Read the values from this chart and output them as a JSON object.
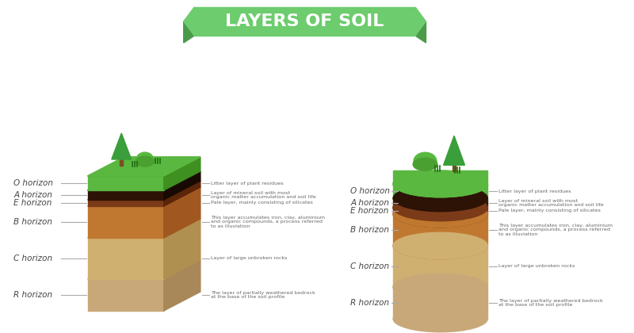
{
  "title": "LAYERS OF SOIL",
  "title_color": "#ffffff",
  "title_bg_color": "#6dcc6d",
  "title_shadow_color": "#4a9a4a",
  "bg_color": "#ffffff",
  "horizons_left": [
    "O horizon",
    "A horizon",
    "E horizon",
    "B horizon",
    "C horizon",
    "R horizon"
  ],
  "horizons_right": [
    "O horizon",
    "A horizon",
    "E horizon",
    "B horizon",
    "C horizon",
    "R horizon"
  ],
  "descriptions_right": [
    "Litter layer of plant residues",
    "Layer of mineral soil with most\norganic matter accumulation and soil life",
    "Pale layer, mainly consisting of silicates",
    "This layer accumulates iron, clay, aluminium\nand organic compounds, a process referred\nto as illuviation",
    "Layer of large unbroken rocks",
    "The layer of partially weathered bedrock\nat the base of the soil profile"
  ],
  "descriptions_left": [
    "Litter layer of plant residues",
    "Layer of mineral soil with most\norganic matter accumulation and soil life",
    "Pale layer, mainly consisting of silicates",
    "This layer accumulates iron, clay, aluminium\nand organic compounds, a process referred\nto as illuviation",
    "Layer of large unbroken rocks",
    "The layer of partially weathered bedrock\nat the base of the soil profile"
  ],
  "layer_heights": [
    18,
    12,
    8,
    40,
    52,
    40
  ],
  "layer_colors_front": [
    "#5ab840",
    "#2d1206",
    "#7b3b18",
    "#c07830",
    "#d0b070",
    "#c8a878"
  ],
  "layer_colors_top": [
    "#4ea030",
    "#220e04",
    "#6b2f10",
    "#b06828",
    "#c0a060",
    "#b89868"
  ],
  "layer_colors_side": [
    "#3e9020",
    "#180a02",
    "#5b2508",
    "#a05820",
    "#b09050",
    "#a88858"
  ],
  "cyl_layer_colors": [
    "#5ab840",
    "#2d1206",
    "#7b3b18",
    "#c07830",
    "#d0b070",
    "#c8a878"
  ],
  "grass_green": "#5ab840",
  "tree_green": "#3a9e3a",
  "tree_trunk": "#7b5020",
  "bush_green": "#5ab840",
  "label_color": "#444444",
  "desc_color": "#666666"
}
